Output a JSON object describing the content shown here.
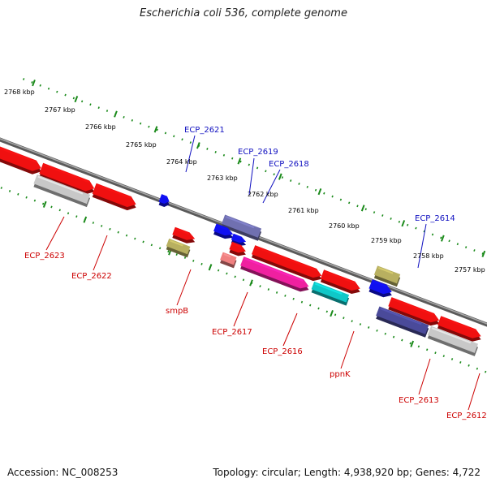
{
  "title": "Escherichia coli 536, complete genome",
  "footer": {
    "accession": "Accession: NC_008253",
    "summary": "Topology: circular; Length: 4,938,920 bp; Genes: 4,722"
  },
  "colors": {
    "backbone": "#808080",
    "tick": "#1a8a1a",
    "label_forward": "#1010c0",
    "label_reverse": "#cc0000",
    "gene_red": "#f01010",
    "gene_blue": "#1010f0",
    "gene_gray": "#c8c8c8",
    "gene_khaki": "#b8b060",
    "gene_pink": "#f08080",
    "gene_magenta": "#f020a0",
    "gene_cyan": "#10c8c8",
    "gene_indigo": "#4a4a9a",
    "gene_slate": "#7070b0"
  },
  "scale_labels": [
    "2768 kbp",
    "2767 kbp",
    "2766 kbp",
    "2765 kbp",
    "2764 kbp",
    "2763 kbp",
    "2762 kbp",
    "2761 kbp",
    "2760 kbp",
    "2759 kbp",
    "2758 kbp",
    "2757 kbp"
  ],
  "gene_labels": [
    {
      "name": "ECP_2621",
      "strand": "forward"
    },
    {
      "name": "ECP_2619",
      "strand": "forward"
    },
    {
      "name": "ECP_2618",
      "strand": "forward"
    },
    {
      "name": "ECP_2614",
      "strand": "forward"
    },
    {
      "name": "ECP_2623",
      "strand": "reverse"
    },
    {
      "name": "ECP_2622",
      "strand": "reverse"
    },
    {
      "name": "smpB",
      "strand": "reverse"
    },
    {
      "name": "ECP_2617",
      "strand": "reverse"
    },
    {
      "name": "ECP_2616",
      "strand": "reverse"
    },
    {
      "name": "ppnK",
      "strand": "reverse"
    },
    {
      "name": "ECP_2613",
      "strand": "reverse"
    },
    {
      "name": "ECP_2612",
      "strand": "reverse"
    }
  ]
}
